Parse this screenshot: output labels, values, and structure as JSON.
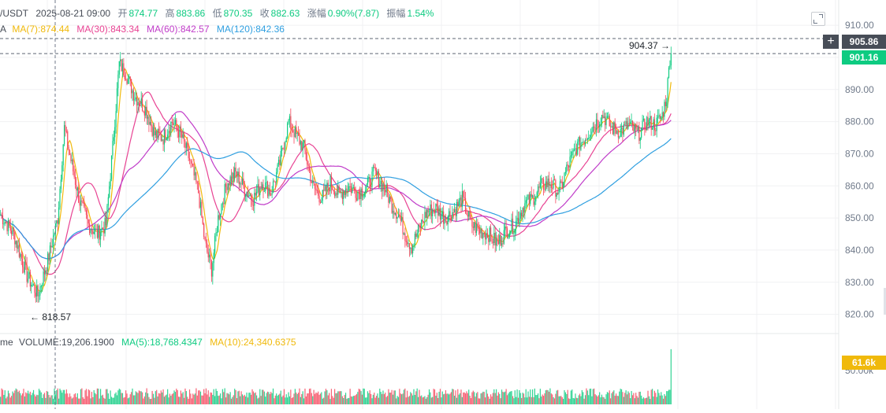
{
  "header": {
    "symbol_fragment": "/USDT",
    "date": "2025-08-21 09:00",
    "open_label": "开",
    "open": "874.77",
    "high_label": "高",
    "high": "883.86",
    "low_label": "低",
    "low": "870.35",
    "close_label": "收",
    "close": "882.63",
    "change_label": "涨幅",
    "change": "0.90%(7.87)",
    "amplitude_label": "振幅",
    "amplitude": "1.54%"
  },
  "ma_legend": {
    "prefix": "A",
    "ma7": "MA(7):874.44",
    "ma30": "MA(30):843.34",
    "ma60": "MA(60):842.57",
    "ma120": "MA(120):842.36"
  },
  "volume_legend": {
    "prefix": "me",
    "volume": "VOLUME:19,206.1900",
    "ma5": "MA(5):18,768.4347",
    "ma10": "MA(10):24,340.6375"
  },
  "price_tags": {
    "current": "905.86",
    "last": "901.16",
    "volume_current": "61.6k",
    "volume_axis_partial": "50.00k"
  },
  "annotations": {
    "high": "904.37",
    "low": "818.57"
  },
  "colors": {
    "up": "#0ecb81",
    "down": "#f6465d",
    "ma7": "#f0b90b",
    "ma30": "#e84393",
    "ma60": "#e84393",
    "ma120": "#2f9fe0",
    "vol_ma5": "#f0b90b",
    "vol_ma10": "#e84393",
    "grid": "#f0f1f3",
    "crosshair": "#707a8a",
    "current_tag": "#474d57"
  },
  "chart_data": {
    "type": "candlestick",
    "y_axis": {
      "ticks": [
        "910.00",
        "900.00",
        "890.00",
        "880.00",
        "870.00",
        "860.00",
        "850.00",
        "840.00",
        "830.00",
        "820.00"
      ],
      "ylim": [
        815,
        911
      ]
    },
    "grid": true,
    "markers": {
      "max": 904.37,
      "min": 818.57,
      "current": 905.86,
      "last": 901.16
    },
    "series_close_keypoints": [
      [
        0,
        851
      ],
      [
        12,
        845
      ],
      [
        24,
        832
      ],
      [
        34,
        826
      ],
      [
        44,
        838
      ],
      [
        52,
        850
      ],
      [
        58,
        878
      ],
      [
        64,
        868
      ],
      [
        72,
        855
      ],
      [
        80,
        848
      ],
      [
        88,
        845
      ],
      [
        96,
        848
      ],
      [
        102,
        872
      ],
      [
        108,
        898
      ],
      [
        114,
        895
      ],
      [
        122,
        888
      ],
      [
        132,
        884
      ],
      [
        140,
        876
      ],
      [
        148,
        875
      ],
      [
        156,
        880
      ],
      [
        164,
        876
      ],
      [
        172,
        868
      ],
      [
        180,
        858
      ],
      [
        186,
        842
      ],
      [
        192,
        834
      ],
      [
        198,
        850
      ],
      [
        206,
        861
      ],
      [
        214,
        864
      ],
      [
        222,
        859
      ],
      [
        230,
        856
      ],
      [
        238,
        861
      ],
      [
        246,
        858
      ],
      [
        254,
        867
      ],
      [
        262,
        880
      ],
      [
        270,
        875
      ],
      [
        276,
        872
      ],
      [
        284,
        860
      ],
      [
        292,
        856
      ],
      [
        300,
        861
      ],
      [
        308,
        857
      ],
      [
        316,
        860
      ],
      [
        324,
        858
      ],
      [
        332,
        859
      ],
      [
        340,
        864
      ],
      [
        350,
        859
      ],
      [
        356,
        854
      ],
      [
        362,
        851
      ],
      [
        368,
        845
      ],
      [
        374,
        841
      ],
      [
        380,
        846
      ],
      [
        388,
        852
      ],
      [
        396,
        853
      ],
      [
        404,
        850
      ],
      [
        412,
        852
      ],
      [
        420,
        856
      ],
      [
        428,
        848
      ],
      [
        436,
        846
      ],
      [
        444,
        845
      ],
      [
        452,
        842
      ],
      [
        460,
        846
      ],
      [
        468,
        848
      ],
      [
        476,
        854
      ],
      [
        484,
        856
      ],
      [
        492,
        860
      ],
      [
        500,
        861
      ],
      [
        508,
        858
      ],
      [
        516,
        866
      ],
      [
        524,
        872
      ],
      [
        532,
        875
      ],
      [
        540,
        879
      ],
      [
        548,
        882
      ],
      [
        556,
        878
      ],
      [
        564,
        877
      ],
      [
        572,
        879
      ],
      [
        580,
        876
      ],
      [
        588,
        880
      ],
      [
        596,
        879
      ],
      [
        602,
        882
      ],
      [
        606,
        888
      ],
      [
        610,
        904
      ]
    ],
    "volume_ylim": [
      0,
      65000
    ],
    "volume_ticks": [
      "50.00k"
    ],
    "volume_last": 61600
  }
}
